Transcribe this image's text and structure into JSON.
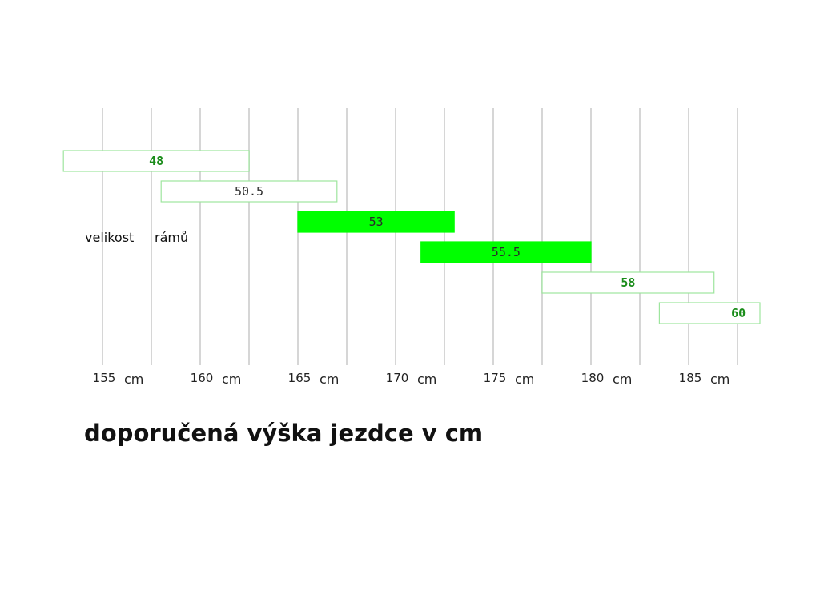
{
  "chart_data": {
    "type": "bar",
    "orientation": "horizontal-range",
    "xlabel": "doporučená výška jezdce v cm",
    "ylabel": [
      "velikost",
      "rámů"
    ],
    "tick_unit": "cm",
    "x_ticks": [
      155,
      160,
      165,
      170,
      175,
      180,
      185
    ],
    "xlim": [
      152.9,
      188.8
    ],
    "grid": true,
    "colors": {
      "highlight_fill": "#00ff00",
      "outline": "#9ee59e",
      "grid": "#d6d6d6",
      "label_highlight": "#1a8c1a",
      "label_plain": "#2a2a2a"
    },
    "frames": [
      {
        "label": "48",
        "min": 153,
        "max": 162.5,
        "highlighted": false,
        "label_color": "#1a8c1a"
      },
      {
        "label": "50.5",
        "min": 158,
        "max": 167,
        "highlighted": false,
        "label_color": "#2a2a2a"
      },
      {
        "label": "53",
        "min": 165,
        "max": 173,
        "highlighted": true,
        "label_color": "#2a2a2a"
      },
      {
        "label": "55.5",
        "min": 171.3,
        "max": 180,
        "highlighted": true,
        "label_color": "#2a2a2a"
      },
      {
        "label": "58",
        "min": 177.5,
        "max": 186.3,
        "highlighted": false,
        "label_color": "#1a8c1a"
      },
      {
        "label": "60",
        "min": 183.5,
        "max": 188.7,
        "highlighted": false,
        "label_color": "#1a8c1a"
      }
    ]
  }
}
